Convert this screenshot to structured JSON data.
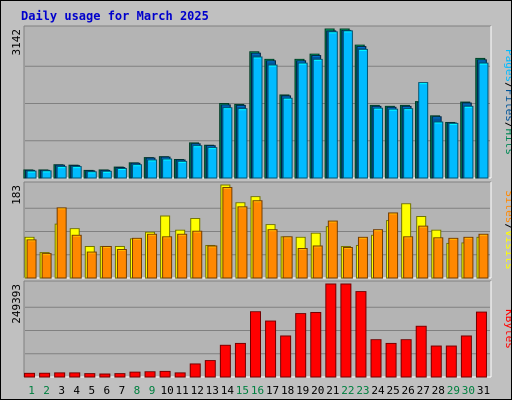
{
  "title": "Daily usage for March 2025",
  "colors": {
    "background": "#c0c0c0",
    "panel": "#b4b4b4",
    "pages": "#00bbff",
    "files": "#005599",
    "hits": "#008855",
    "visits": "#ffff00",
    "sites": "#ff8800",
    "kbytes": "#ff0000",
    "weekend_day": "#008040",
    "weekday_day": "#000000"
  },
  "chart_data": [
    {
      "type": "bar",
      "panel": "top",
      "ymax_label": "3142",
      "ylabel_parts": [
        "Pages",
        "/",
        "Files",
        "/",
        "Hits"
      ],
      "categories": [
        "1",
        "2",
        "3",
        "4",
        "5",
        "6",
        "7",
        "8",
        "9",
        "10",
        "11",
        "12",
        "13",
        "14",
        "15",
        "16",
        "17",
        "18",
        "19",
        "20",
        "21",
        "22",
        "23",
        "24",
        "25",
        "26",
        "27",
        "28",
        "29",
        "30",
        "31"
      ],
      "series": [
        {
          "name": "Hits",
          "values": [
            170,
            170,
            280,
            270,
            160,
            170,
            230,
            320,
            430,
            450,
            390,
            740,
            690,
            1570,
            1550,
            2660,
            2500,
            1750,
            2500,
            2610,
            3140,
            3140,
            2800,
            1530,
            1510,
            1530,
            1610,
            1310,
            1170,
            1600,
            2520
          ]
        },
        {
          "name": "Files",
          "values": [
            160,
            160,
            270,
            260,
            150,
            160,
            220,
            310,
            420,
            440,
            380,
            720,
            680,
            1540,
            1530,
            2630,
            2470,
            1730,
            2470,
            2580,
            3100,
            3110,
            2770,
            1510,
            1490,
            1510,
            1590,
            1290,
            1160,
            1580,
            2490
          ]
        },
        {
          "name": "Pages",
          "values": [
            145,
            150,
            240,
            240,
            130,
            140,
            200,
            280,
            380,
            400,
            350,
            680,
            640,
            1480,
            1460,
            2550,
            2380,
            1680,
            2420,
            2500,
            3080,
            3100,
            2710,
            1470,
            1450,
            1460,
            2010,
            1180,
            1150,
            1510,
            2420
          ]
        }
      ]
    },
    {
      "type": "bar",
      "panel": "middle",
      "ymax_label": "183",
      "ylabel_parts": [
        "Sites",
        "/",
        "Visits"
      ],
      "categories": [
        "1",
        "2",
        "3",
        "4",
        "5",
        "6",
        "7",
        "8",
        "9",
        "10",
        "11",
        "12",
        "13",
        "14",
        "15",
        "16",
        "17",
        "18",
        "19",
        "20",
        "21",
        "22",
        "23",
        "24",
        "25",
        "26",
        "27",
        "28",
        "29",
        "30",
        "31"
      ],
      "series": [
        {
          "name": "Visits",
          "values": [
            80,
            50,
            106,
            97,
            62,
            62,
            62,
            77,
            90,
            122,
            94,
            117,
            64,
            183,
            148,
            160,
            105,
            81,
            80,
            88,
            101,
            62,
            64,
            84,
            113,
            146,
            121,
            94,
            68,
            69,
            80
          ]
        },
        {
          "name": "Sites",
          "values": [
            75,
            48,
            138,
            84,
            51,
            62,
            56,
            78,
            86,
            81,
            86,
            92,
            63,
            178,
            140,
            152,
            95,
            81,
            58,
            63,
            112,
            60,
            80,
            95,
            128,
            81,
            102,
            79,
            78,
            80,
            86
          ]
        }
      ]
    },
    {
      "type": "bar",
      "panel": "bottom",
      "ymax_label": "249393",
      "ylabel_parts": [
        "KBytes"
      ],
      "categories": [
        "1",
        "2",
        "3",
        "4",
        "5",
        "6",
        "7",
        "8",
        "9",
        "10",
        "11",
        "12",
        "13",
        "14",
        "15",
        "16",
        "17",
        "18",
        "19",
        "20",
        "21",
        "22",
        "23",
        "24",
        "25",
        "26",
        "27",
        "28",
        "29",
        "30",
        "31"
      ],
      "series": [
        {
          "name": "KBytes",
          "values": [
            9800,
            10000,
            11000,
            11000,
            9000,
            8000,
            9000,
            13000,
            14000,
            15000,
            11000,
            35000,
            44000,
            85000,
            90000,
            175000,
            150000,
            110000,
            170000,
            173000,
            249393,
            249393,
            229000,
            100000,
            90000,
            100000,
            136000,
            83000,
            83000,
            110000,
            174000
          ]
        }
      ]
    }
  ],
  "day_labels": [
    "1",
    "2",
    "3",
    "4",
    "5",
    "6",
    "7",
    "8",
    "9",
    "10",
    "11",
    "12",
    "13",
    "14",
    "15",
    "16",
    "17",
    "18",
    "19",
    "20",
    "21",
    "22",
    "23",
    "24",
    "25",
    "26",
    "27",
    "28",
    "29",
    "30",
    "31"
  ],
  "weekend_days": [
    1,
    2,
    8,
    9,
    15,
    16,
    22,
    23,
    29,
    30
  ]
}
